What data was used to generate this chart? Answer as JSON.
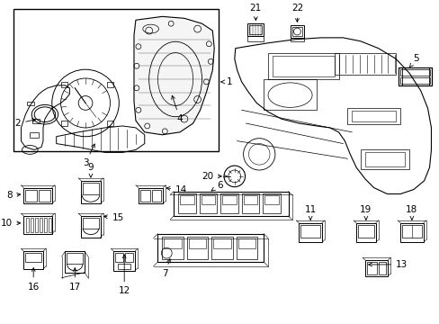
{
  "bg": "#ffffff",
  "lc": "#000000",
  "fig_w": 4.89,
  "fig_h": 3.6,
  "dpi": 100,
  "font_size": 7.5
}
